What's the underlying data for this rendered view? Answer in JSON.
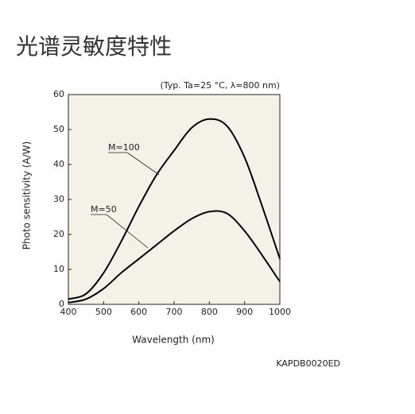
{
  "chart_data": {
    "type": "line",
    "title": "光谱灵敏度特性",
    "subtitle": "(Typ. Ta=25 °C, λ=800 nm)",
    "code": "KAPDB0020ED",
    "x_label": "Wavelength (nm)",
    "y_label": "Photo sensitivity (A/W)",
    "x": [
      400,
      450,
      500,
      550,
      600,
      650,
      700,
      750,
      800,
      850,
      900,
      950,
      1000
    ],
    "series": [
      {
        "name": "M=100",
        "color": "#000000",
        "values": [
          1.5,
          3,
          9,
          18,
          28,
          37,
          44,
          50.5,
          53,
          51,
          42,
          28,
          13
        ]
      },
      {
        "name": "M=50",
        "color": "#000000",
        "values": [
          0.5,
          1.5,
          4.5,
          9,
          13,
          17,
          21,
          24.5,
          26.5,
          26,
          21,
          14,
          6.5
        ]
      }
    ],
    "xlim": [
      400,
      1000
    ],
    "xticks": [
      400,
      500,
      600,
      700,
      800,
      900,
      1000
    ],
    "ylim": [
      0,
      60
    ],
    "yticks": [
      0,
      10,
      20,
      30,
      40,
      50,
      60
    ],
    "background": "#f4f2e8",
    "grid": false
  }
}
